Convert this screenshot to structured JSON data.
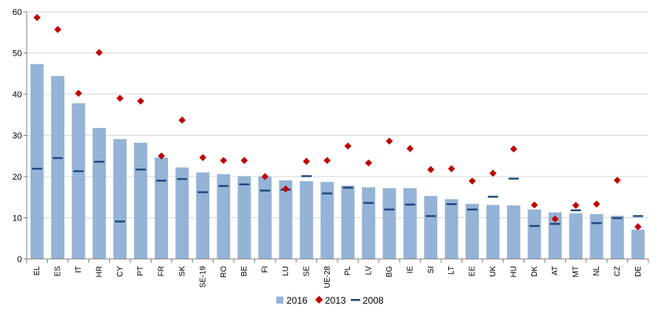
{
  "chart_data": {
    "type": "bar",
    "categories": [
      "EL",
      "ES",
      "IT",
      "HR",
      "CY",
      "PT",
      "FR",
      "SK",
      "SE-19",
      "RO",
      "BE",
      "FI",
      "LU",
      "SE",
      "UE-28",
      "PL",
      "LV",
      "BG",
      "IE",
      "SI",
      "LT",
      "EE",
      "UK",
      "HU",
      "DK",
      "AT",
      "MT",
      "NL",
      "CZ",
      "DE"
    ],
    "series": [
      {
        "name": "2016",
        "mark": "bar",
        "color": "#95b3d7",
        "values": [
          47.3,
          44.4,
          37.8,
          31.8,
          29.1,
          28.2,
          24.6,
          22.2,
          21.0,
          20.6,
          20.1,
          20.0,
          19.1,
          18.9,
          18.7,
          17.8,
          17.4,
          17.2,
          17.2,
          15.3,
          14.5,
          13.4,
          13.1,
          13.0,
          12.0,
          11.3,
          11.1,
          10.9,
          10.5,
          7.1
        ]
      },
      {
        "name": "2013",
        "mark": "diamond",
        "color": "#c00000",
        "values": [
          58.6,
          55.7,
          40.2,
          50.1,
          39.0,
          38.3,
          25.0,
          33.7,
          24.6,
          23.9,
          23.9,
          20.0,
          17.0,
          23.7,
          23.9,
          27.4,
          23.3,
          28.6,
          26.8,
          21.7,
          21.9,
          18.9,
          20.8,
          26.7,
          13.1,
          9.7,
          13.0,
          13.3,
          19.1,
          7.8
        ]
      },
      {
        "name": "2008",
        "mark": "dash",
        "color": "#1f497d",
        "values": [
          21.9,
          24.5,
          21.3,
          23.6,
          9.1,
          21.7,
          19.0,
          19.4,
          16.2,
          17.7,
          18.1,
          16.6,
          16.8,
          20.1,
          15.9,
          17.3,
          13.6,
          12.0,
          13.2,
          10.4,
          13.3,
          12.0,
          15.1,
          19.5,
          8.0,
          8.5,
          11.8,
          8.7,
          9.9,
          10.4
        ]
      }
    ],
    "y_ticks": [
      "0",
      "10",
      "20",
      "30",
      "40",
      "50",
      "60"
    ],
    "ylim": [
      0,
      60
    ],
    "grid": true,
    "legend_position": "bottom-center"
  }
}
